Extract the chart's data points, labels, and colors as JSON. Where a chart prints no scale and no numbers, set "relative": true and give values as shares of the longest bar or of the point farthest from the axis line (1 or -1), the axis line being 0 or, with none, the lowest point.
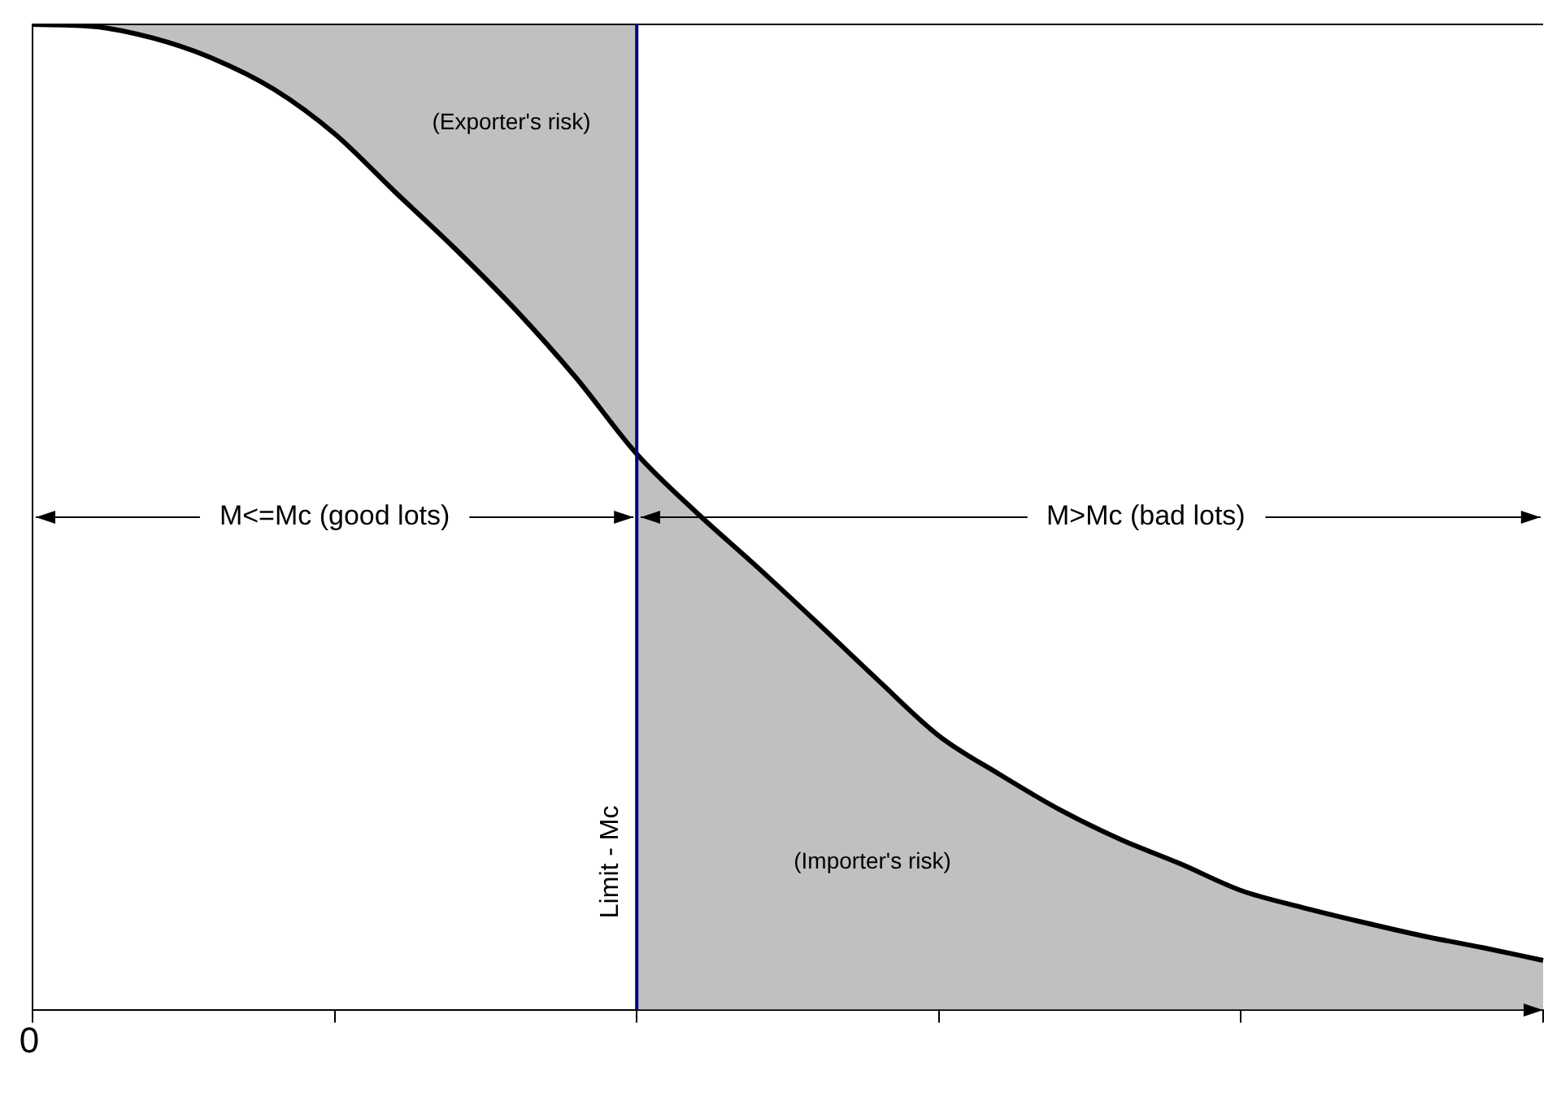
{
  "chart_data": {
    "type": "line",
    "relative": true,
    "categories": [
      null,
      null,
      null,
      null,
      null,
      null,
      null,
      null,
      null,
      null,
      null,
      null,
      null,
      null,
      null,
      null,
      null,
      null,
      null,
      null,
      null,
      null,
      null,
      null,
      null,
      null
    ],
    "series": [
      {
        "color": "#000000",
        "values": [
          1.0,
          0.998,
          0.986,
          0.965,
          0.934,
          0.889,
          0.83,
          0.772,
          0.71,
          0.641,
          0.564,
          0.504,
          0.449,
          0.392,
          0.334,
          0.278,
          0.239,
          0.203,
          0.173,
          0.148,
          0.121,
          0.104,
          0.089,
          0.075,
          0.063,
          0.05
        ],
        "lower": [
          1.0,
          0.998,
          0.986,
          0.965,
          0.934,
          0.889,
          0.83,
          0.772,
          0.71,
          0.641,
          0.564,
          null,
          null,
          null,
          null,
          null,
          null,
          null,
          null,
          null,
          null,
          null,
          null,
          null,
          null,
          null
        ],
        "upper": [
          1.0,
          1.0,
          1.0,
          1.0,
          1.0,
          1.0,
          1.0,
          1.0,
          1.0,
          1.0,
          1.0,
          null,
          null,
          null,
          null,
          null,
          null,
          null,
          null,
          null,
          null,
          null,
          null,
          null,
          null,
          null
        ]
      },
      {
        "type": "area",
        "color": "#c0c0c0",
        "values": [
          null,
          null,
          null,
          null,
          null,
          null,
          null,
          null,
          null,
          null,
          0.564,
          0.504,
          0.449,
          0.392,
          0.334,
          0.278,
          0.239,
          0.203,
          0.173,
          0.148,
          0.121,
          0.104,
          0.089,
          0.075,
          0.063,
          0.05
        ]
      }
    ],
    "annotations": [
      "(Exporter's risk)",
      "(Importer's risk)",
      "M<=Mc (good lots)",
      "M>Mc (bad lots)",
      "0",
      "Limit - Mc"
    ],
    "grid": false,
    "legend": false,
    "marker": "none",
    "line_style": "solid"
  }
}
